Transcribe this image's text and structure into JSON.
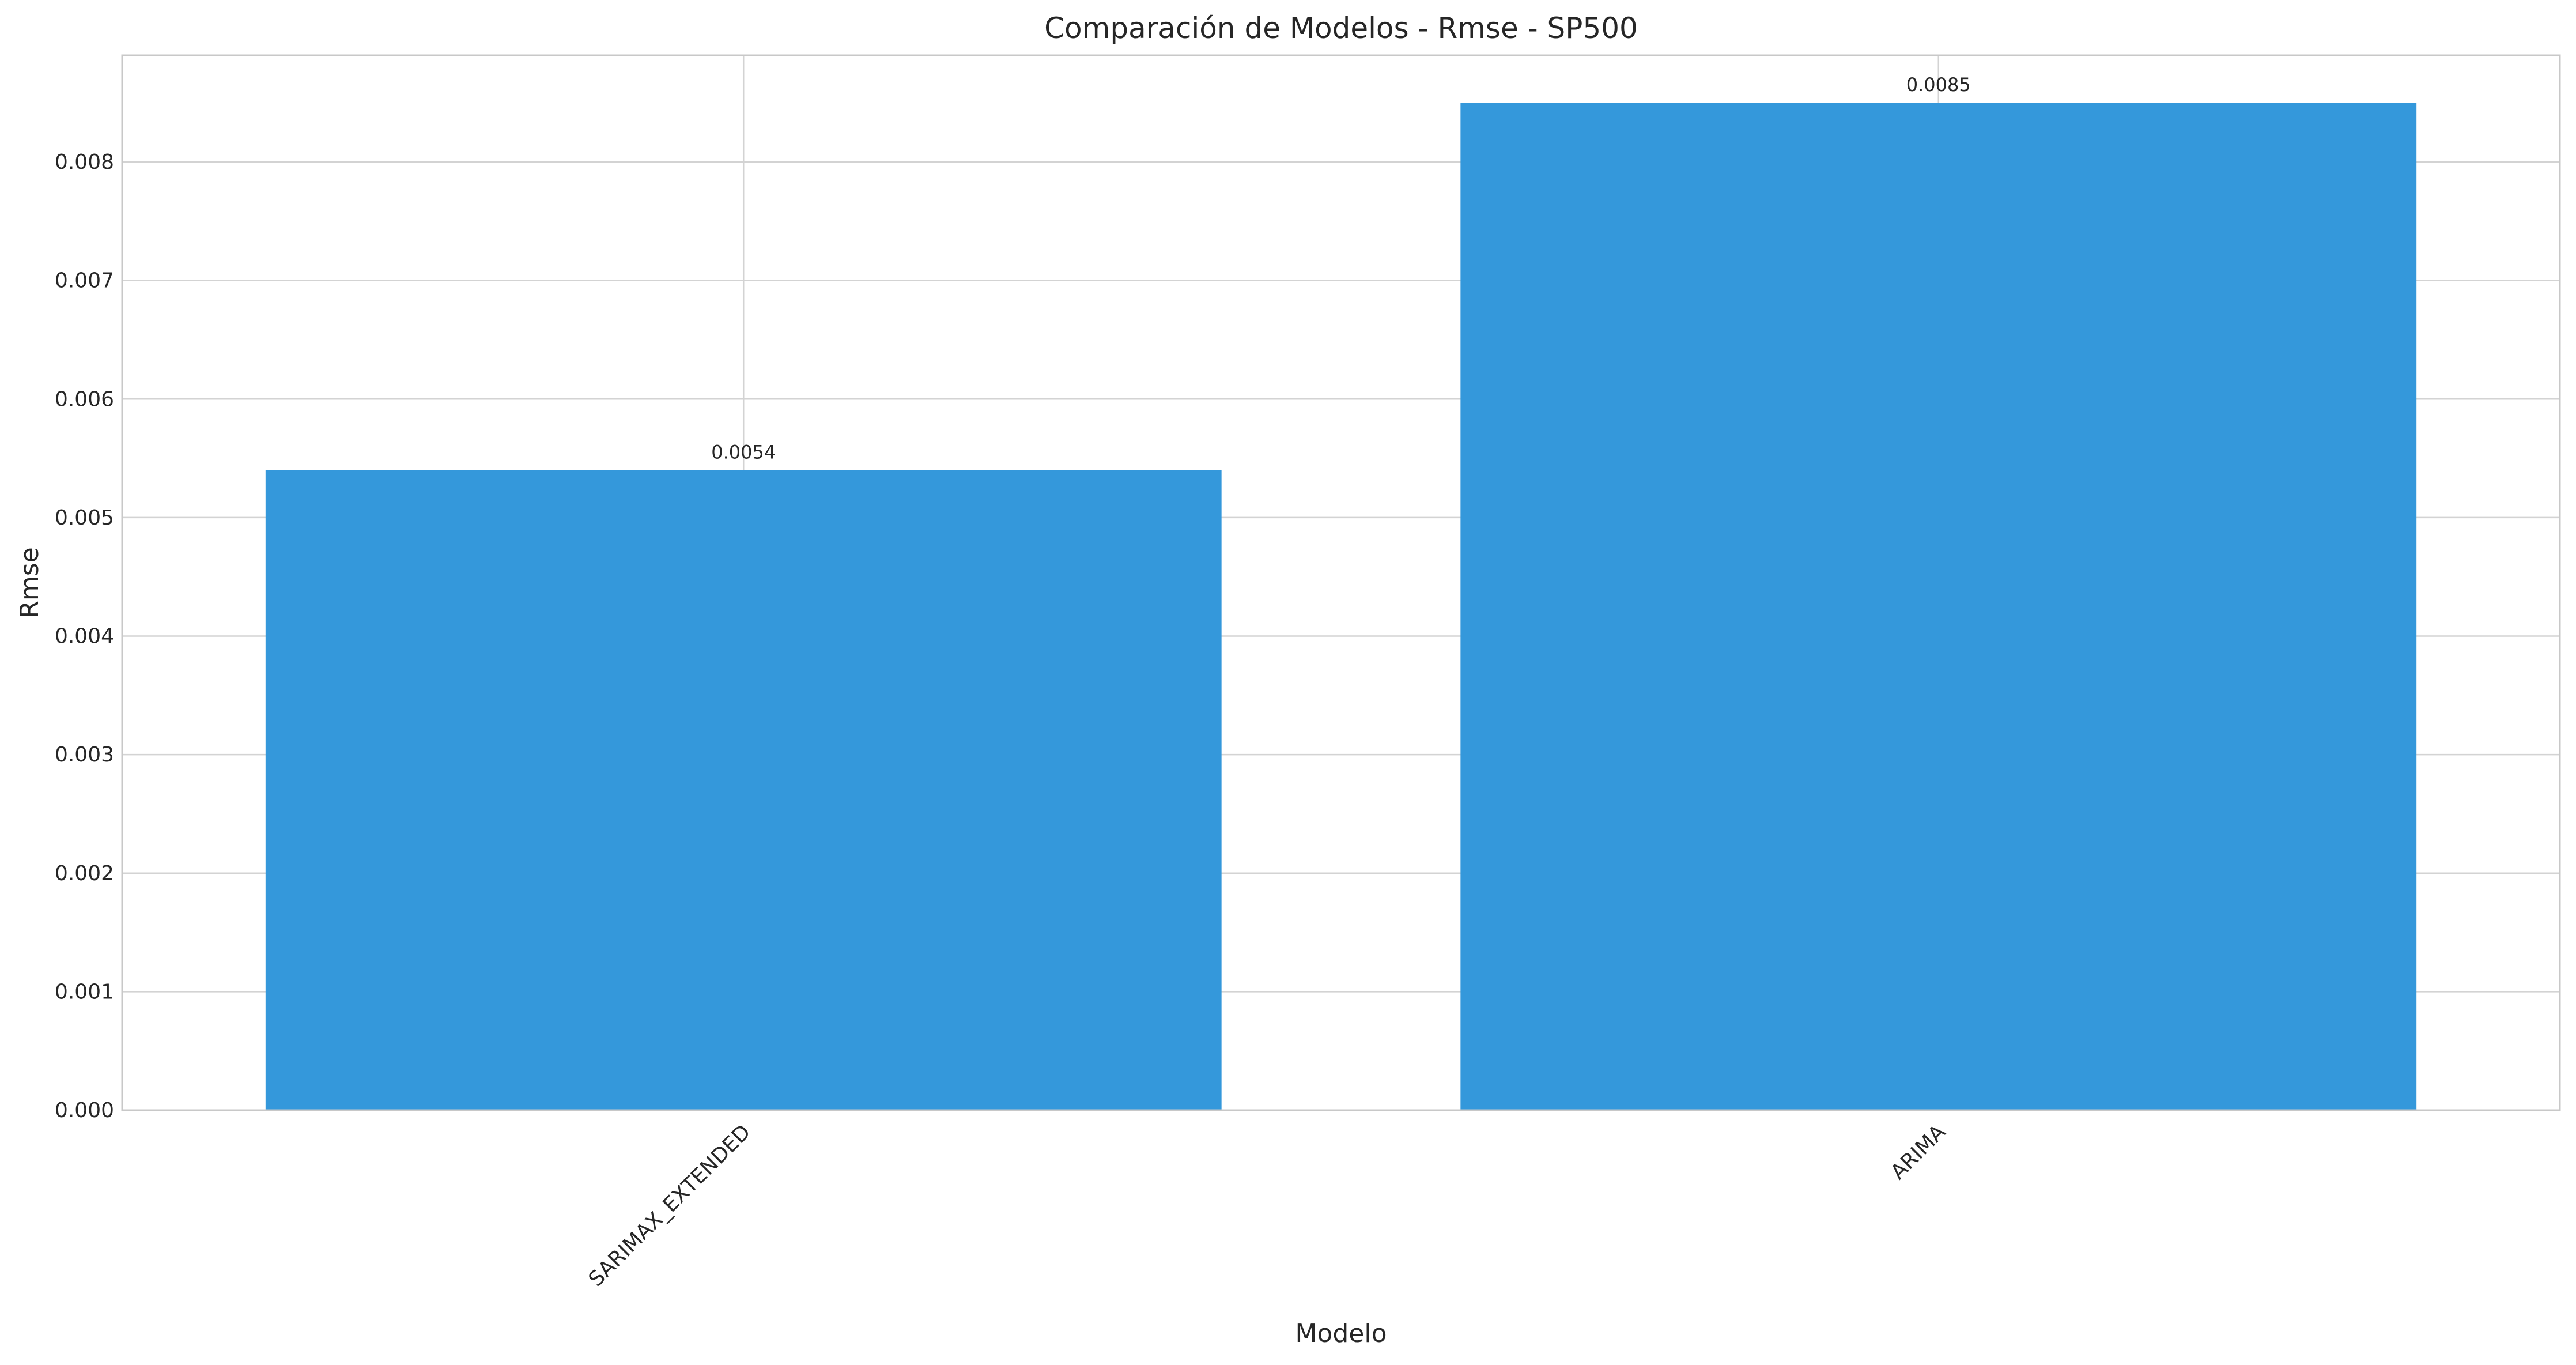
{
  "chart_data": {
    "type": "bar",
    "title": "Comparación de Modelos - Rmse - SP500",
    "xlabel": "Modelo",
    "ylabel": "Rmse",
    "categories": [
      "SARIMAX_EXTENDED",
      "ARIMA"
    ],
    "values": [
      0.0054,
      0.0085
    ],
    "value_labels": [
      "0.0054",
      "0.0085"
    ],
    "ylim": [
      0,
      0.0089
    ],
    "yticks": [
      0.0,
      0.001,
      0.002,
      0.003,
      0.004,
      0.005,
      0.006,
      0.007,
      0.008
    ],
    "ytick_labels": [
      "0.000",
      "0.001",
      "0.002",
      "0.003",
      "0.004",
      "0.005",
      "0.006",
      "0.007",
      "0.008"
    ],
    "bar_color": "#3498db",
    "grid": true,
    "xtick_rotation_deg": 45
  }
}
